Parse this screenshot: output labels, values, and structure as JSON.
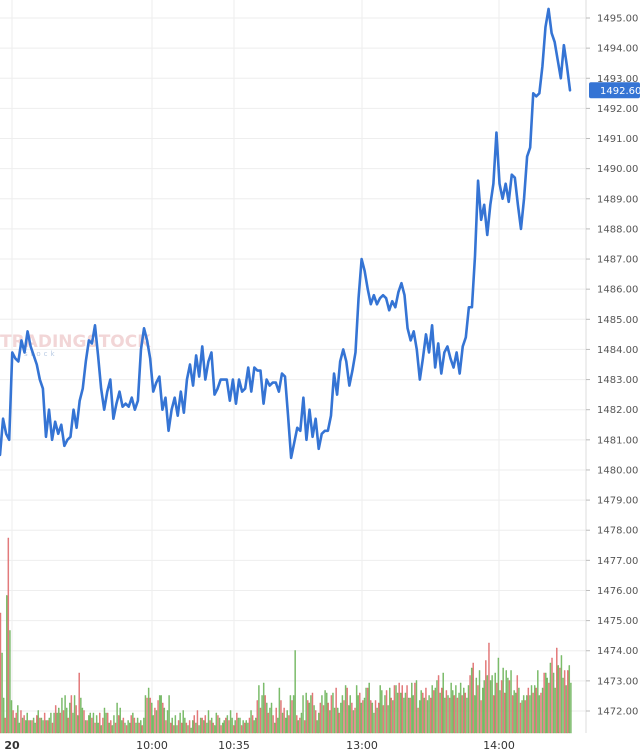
{
  "watermark": {
    "brand": "TRADINGSTOCK",
    "sub": "stock"
  },
  "chart_data": {
    "type": "line",
    "y_ticks": [
      "1495.00",
      "1494.00",
      "1493.00",
      "1492.00",
      "1491.00",
      "1490.00",
      "1489.00",
      "1488.00",
      "1487.00",
      "1486.00",
      "1485.00",
      "1484.00",
      "1483.00",
      "1482.00",
      "1481.00",
      "1480.00",
      "1479.00",
      "1478.00",
      "1477.00",
      "1476.00",
      "1475.00",
      "1474.00",
      "1473.00",
      "1472.00"
    ],
    "ylim": [
      1471.3,
      1495.7
    ],
    "x_ticks": [
      "20",
      "10:00",
      "10:35",
      "13:00",
      "14:00"
    ],
    "current_value": "1492.60",
    "colors": {
      "line": "#3574d4",
      "up": "#8fcb7a",
      "down": "#f0898a",
      "badge": "#3574d4",
      "grid": "#eeeeee"
    },
    "series": [
      {
        "values": [
          1480.5,
          1481.7,
          1481.2,
          1481.0,
          1483.9,
          1483.7,
          1483.6,
          1484.3,
          1483.9,
          1484.6,
          1484.1,
          1483.8,
          1483.5,
          1483.0,
          1482.7,
          1481.1,
          1482.0,
          1481.0,
          1481.6,
          1481.2,
          1481.5,
          1480.8,
          1481.0,
          1481.1,
          1482.0,
          1481.4,
          1482.3,
          1482.7,
          1483.6,
          1484.3,
          1484.2,
          1484.8,
          1483.8,
          1482.7,
          1482.0,
          1482.6,
          1483.0,
          1481.7,
          1482.2,
          1482.6,
          1482.1,
          1482.2,
          1482.1,
          1482.4,
          1482.0,
          1482.3,
          1484.0,
          1484.7,
          1484.3,
          1483.7,
          1482.6,
          1482.9,
          1483.1,
          1482.0,
          1482.4,
          1481.3,
          1482.0,
          1482.4,
          1481.8,
          1482.6,
          1481.9,
          1483.0,
          1483.5,
          1482.8,
          1483.8,
          1483.1,
          1484.1,
          1483.0,
          1483.6,
          1483.9,
          1482.5,
          1482.7,
          1483.0,
          1483.0,
          1483.0,
          1482.3,
          1483.0,
          1482.2,
          1483.0,
          1482.6,
          1482.7,
          1483.4,
          1482.6,
          1483.4,
          1483.3,
          1483.3,
          1482.2,
          1483.0,
          1482.8,
          1482.9,
          1482.9,
          1482.6,
          1483.2,
          1483.1,
          1481.8,
          1480.4,
          1480.9,
          1481.4,
          1481.3,
          1482.4,
          1481.0,
          1482.0,
          1481.1,
          1481.7,
          1480.7,
          1481.2,
          1481.3,
          1481.3,
          1481.8,
          1483.2,
          1482.5,
          1483.6,
          1484.0,
          1483.6,
          1482.8,
          1483.3,
          1483.9,
          1485.7,
          1487.0,
          1486.6,
          1486.0,
          1485.5,
          1485.8,
          1485.5,
          1485.7,
          1485.8,
          1485.7,
          1485.3,
          1485.6,
          1485.4,
          1485.9,
          1486.2,
          1485.8,
          1484.7,
          1484.3,
          1484.6,
          1484.0,
          1483.0,
          1483.7,
          1484.5,
          1483.9,
          1484.8,
          1483.4,
          1484.2,
          1483.2,
          1483.9,
          1484.1,
          1483.7,
          1483.4,
          1483.9,
          1483.2,
          1484.1,
          1484.4,
          1485.4,
          1485.4,
          1487.1,
          1489.6,
          1488.3,
          1488.8,
          1487.8,
          1488.8,
          1489.5,
          1491.2,
          1489.5,
          1489.0,
          1489.5,
          1488.9,
          1489.8,
          1489.7,
          1488.8,
          1488.0,
          1489.0,
          1490.4,
          1490.7,
          1492.5,
          1492.4,
          1492.5,
          1493.4,
          1494.7,
          1495.3,
          1494.5,
          1494.2,
          1493.6,
          1493.0,
          1494.1,
          1493.4,
          1492.6
        ]
      }
    ],
    "volume": {
      "values": [
        4.8,
        3.2,
        1.4,
        0.6,
        5.5,
        7.8,
        4.1,
        1.3,
        0.9,
        0.6,
        0.8,
        1.1,
        0.4,
        0.9,
        0.6,
        0.7,
        0.5,
        0.8,
        0.5,
        0.5,
        0.5,
        0.6,
        0.4,
        0.7,
        0.9,
        0.6,
        0.6,
        0.5,
        0.8,
        0.5,
        0.5,
        0.6,
        0.8,
        0.4,
        0.8,
        1.1,
        0.8,
        1.0,
        0.8,
        1.4,
        0.9,
        1.5,
        1.0,
        0.6,
        1.2,
        1.5,
        0.8,
        1.5,
        1.1,
        0.7,
        2.4,
        1.4,
        1.0,
        0.9,
        0.5,
        0.5,
        0.7,
        0.8,
        0.6,
        0.8,
        0.4,
        0.7,
        0.4,
        0.8,
        0.3,
        0.6,
        1.0,
        0.8,
        0.8,
        0.4,
        0.5,
        0.3,
        0.7,
        0.4,
        1.2,
        0.7,
        1.0,
        0.5,
        0.6,
        0.4,
        0.3,
        0.5,
        0.4,
        0.7,
        0.8,
        0.6,
        0.4,
        0.6,
        0.4,
        0.5,
        0.3,
        0.6,
        1.5,
        1.4,
        1.8,
        1.4,
        1.2,
        0.7,
        1.0,
        0.9,
        1.3,
        1.5,
        1.5,
        1.2,
        1.0,
        0.5,
        0.9,
        1.5,
        0.4,
        0.6,
        0.3,
        0.7,
        0.3,
        0.5,
        0.8,
        0.4,
        0.9,
        0.6,
        0.4,
        0.3,
        0.5,
        0.2,
        0.5,
        0.7,
        0.4,
        0.9,
        0.3,
        0.6,
        0.6,
        0.5,
        0.7,
        0.4,
        0.9,
        0.5,
        0.6,
        0.4,
        0.3,
        0.8,
        0.7,
        0.6,
        0.3,
        0.4,
        0.5,
        0.6,
        0.7,
        0.5,
        0.9,
        0.6,
        0.3,
        0.5,
        0.8,
        0.6,
        0.6,
        0.3,
        0.5,
        0.4,
        0.5,
        0.4,
        0.6,
        0.9,
        0.7,
        0.5,
        0.6,
        1.3,
        1.9,
        1.0,
        1.5,
        2.0,
        1.5,
        1.2,
        0.8,
        1.0,
        1.2,
        0.7,
        0.4,
        1.0,
        0.6,
        1.8,
        1.3,
        0.8,
        1.0,
        0.6,
        0.9,
        0.7,
        1.5,
        1.3,
        1.5,
        3.3,
        0.7,
        0.5,
        0.6,
        0.8,
        1.5,
        0.5,
        1.6,
        1.3,
        1.2,
        1.5,
        1.6,
        1.1,
        0.9,
        0.5,
        0.8,
        1.2,
        1.5,
        1.1,
        1.7,
        1.6,
        1.2,
        0.9,
        1.5,
        1.6,
        1.0,
        1.8,
        1.0,
        0.8,
        1.2,
        1.5,
        1.3,
        1.9,
        1.8,
        1.1,
        1.5,
        1.2,
        0.9,
        1.0,
        1.9,
        1.5,
        1.6,
        1.2,
        1.3,
        1.4,
        1.8,
        1.8,
        2.0,
        1.3,
        1.2,
        0.8,
        1.3,
        1.0,
        1.2,
        1.9,
        1.7,
        1.1,
        1.5,
        1.7,
        1.1,
        1.8,
        1.4,
        1.3,
        1.9,
        1.9,
        1.6,
        2.0,
        1.6,
        1.9,
        1.4,
        1.6,
        1.9,
        1.4,
        1.4,
        2.0,
        1.5,
        2.0,
        2.1,
        1.0,
        1.3,
        1.7,
        1.6,
        1.4,
        1.8,
        1.3,
        1.5,
        1.4,
        1.9,
        1.7,
        1.8,
        2.1,
        2.3,
        1.6,
        1.8,
        2.4,
        1.4,
        1.7,
        1.5,
        1.4,
        2.0,
        1.7,
        1.5,
        1.9,
        1.4,
        1.6,
        2.0,
        1.5,
        1.8,
        1.6,
        1.4,
        1.9,
        2.3,
        2.6,
        2.8,
        1.5,
        2.2,
        1.9,
        2.5,
        1.3,
        1.8,
        2.1,
        2.9,
        2.3,
        3.6,
        2.1,
        2.3,
        1.5,
        2.4,
        2.0,
        3.0,
        1.7,
        2.1,
        2.6,
        1.6,
        2.5,
        2.2,
        2.1,
        2.5,
        1.5,
        1.7,
        1.6,
        2.3,
        1.8,
        1.2,
        1.3,
        1.5,
        1.3,
        1.5,
        1.8,
        1.5,
        1.9,
        1.6,
        1.9,
        1.8,
        2.5,
        1.5,
        1.6,
        1.8,
        2.4,
        2.4,
        2.2,
        2.0,
        2.8,
        3.0,
        2.4,
        1.8,
        3.4,
        2.7,
        2.6,
        3.1,
        2.2,
        2.5,
        1.9,
        2.5,
        2.7,
        2.0
      ]
    }
  }
}
